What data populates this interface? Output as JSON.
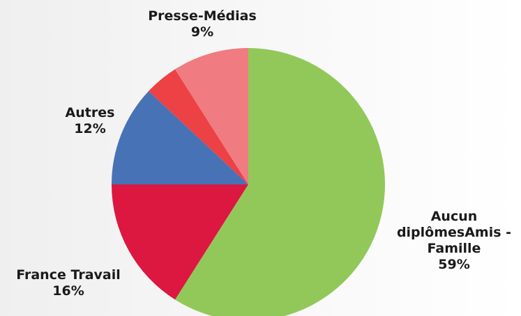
{
  "chart_data": {
    "type": "pie",
    "title": "",
    "slices": [
      {
        "label": "Aucun diplômesAmis - Famille",
        "label_lines": [
          "Aucun",
          "diplômesAmis -",
          "Famille"
        ],
        "value": 59,
        "value_label": "59%",
        "color": "#92c85a"
      },
      {
        "label": "France Travail",
        "label_lines": [
          "France Travail"
        ],
        "value": 16,
        "value_label": "16%",
        "color": "#dc1740"
      },
      {
        "label": "Autres",
        "label_lines": [
          "Autres"
        ],
        "value": 12,
        "value_label": "12%",
        "color": "#4872b6"
      },
      {
        "label": "",
        "label_lines": [],
        "value": 4,
        "value_label": "",
        "color": "#ec4145"
      },
      {
        "label": "Presse-Médias",
        "label_lines": [
          "Presse-Médias"
        ],
        "value": 9,
        "value_label": "9%",
        "color": "#f07b80"
      }
    ],
    "start_angle_deg": 0,
    "direction": "clockwise",
    "legend": "none"
  }
}
